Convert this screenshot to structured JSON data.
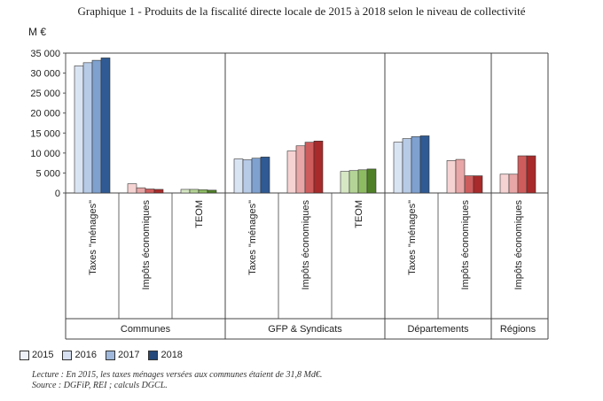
{
  "title": "Graphique 1 - Produits de la fiscalité directe locale de 2015 à 2018 selon le niveau de collectivité",
  "notes": {
    "lecture": "Lecture : En 2015, les taxes ménages versées aux communes étaient de 31,8 Md€.",
    "source": "Source : DGFiP, REI ; calculs DGCL."
  },
  "chart_data": {
    "type": "bar",
    "unit_label": "M €",
    "ylim": [
      0,
      35000
    ],
    "yticks": [
      "0",
      "5 000",
      "10 000",
      "15 000",
      "20 000",
      "25 000",
      "30 000",
      "35 000"
    ],
    "grid": false,
    "legend_position": "bottom-left",
    "series_names": [
      "2015",
      "2016",
      "2017",
      "2018"
    ],
    "groups": [
      {
        "name": "Communes",
        "categories": [
          {
            "label": "Taxes \"ménages\"",
            "palette": "blue",
            "values": [
              31800,
              32600,
              33200,
              33800
            ]
          },
          {
            "label": "Impôts économiques",
            "palette": "red",
            "values": [
              2300,
              1300,
              1000,
              900
            ]
          },
          {
            "label": "TEOM",
            "palette": "green",
            "values": [
              900,
              900,
              800,
              700
            ]
          }
        ]
      },
      {
        "name": "GFP & Syndicats",
        "categories": [
          {
            "label": "Taxes \"ménages\"",
            "palette": "blue",
            "values": [
              8500,
              8300,
              8700,
              9000
            ]
          },
          {
            "label": "Impôts économiques",
            "palette": "red",
            "values": [
              10500,
              11800,
              12700,
              13000
            ]
          },
          {
            "label": "TEOM",
            "palette": "green",
            "values": [
              5400,
              5600,
              5800,
              6000
            ]
          }
        ]
      },
      {
        "name": "Départements",
        "categories": [
          {
            "label": "Taxes \"ménages\"",
            "palette": "blue",
            "values": [
              12700,
              13600,
              14100,
              14300
            ]
          },
          {
            "label": "Impôts économiques",
            "palette": "red",
            "values": [
              8100,
              8400,
              4300,
              4300
            ]
          }
        ]
      },
      {
        "name": "Régions",
        "categories": [
          {
            "label": "Impôts économiques",
            "palette": "red",
            "values": [
              4700,
              4700,
              9300,
              9300
            ]
          }
        ]
      }
    ],
    "palettes": {
      "blue": [
        "#d9e4f3",
        "#b7cbe7",
        "#7fa1d0",
        "#2f5a93"
      ],
      "red": [
        "#f6d3d3",
        "#e8a6a6",
        "#cf5c5c",
        "#a82a2a"
      ],
      "green": [
        "#d6e7c4",
        "#b4d497",
        "#8dbb62",
        "#4f7f26"
      ]
    },
    "legend_colors": [
      "#eef1f7",
      "#d6e0f0",
      "#9fb8db",
      "#24497a"
    ]
  }
}
